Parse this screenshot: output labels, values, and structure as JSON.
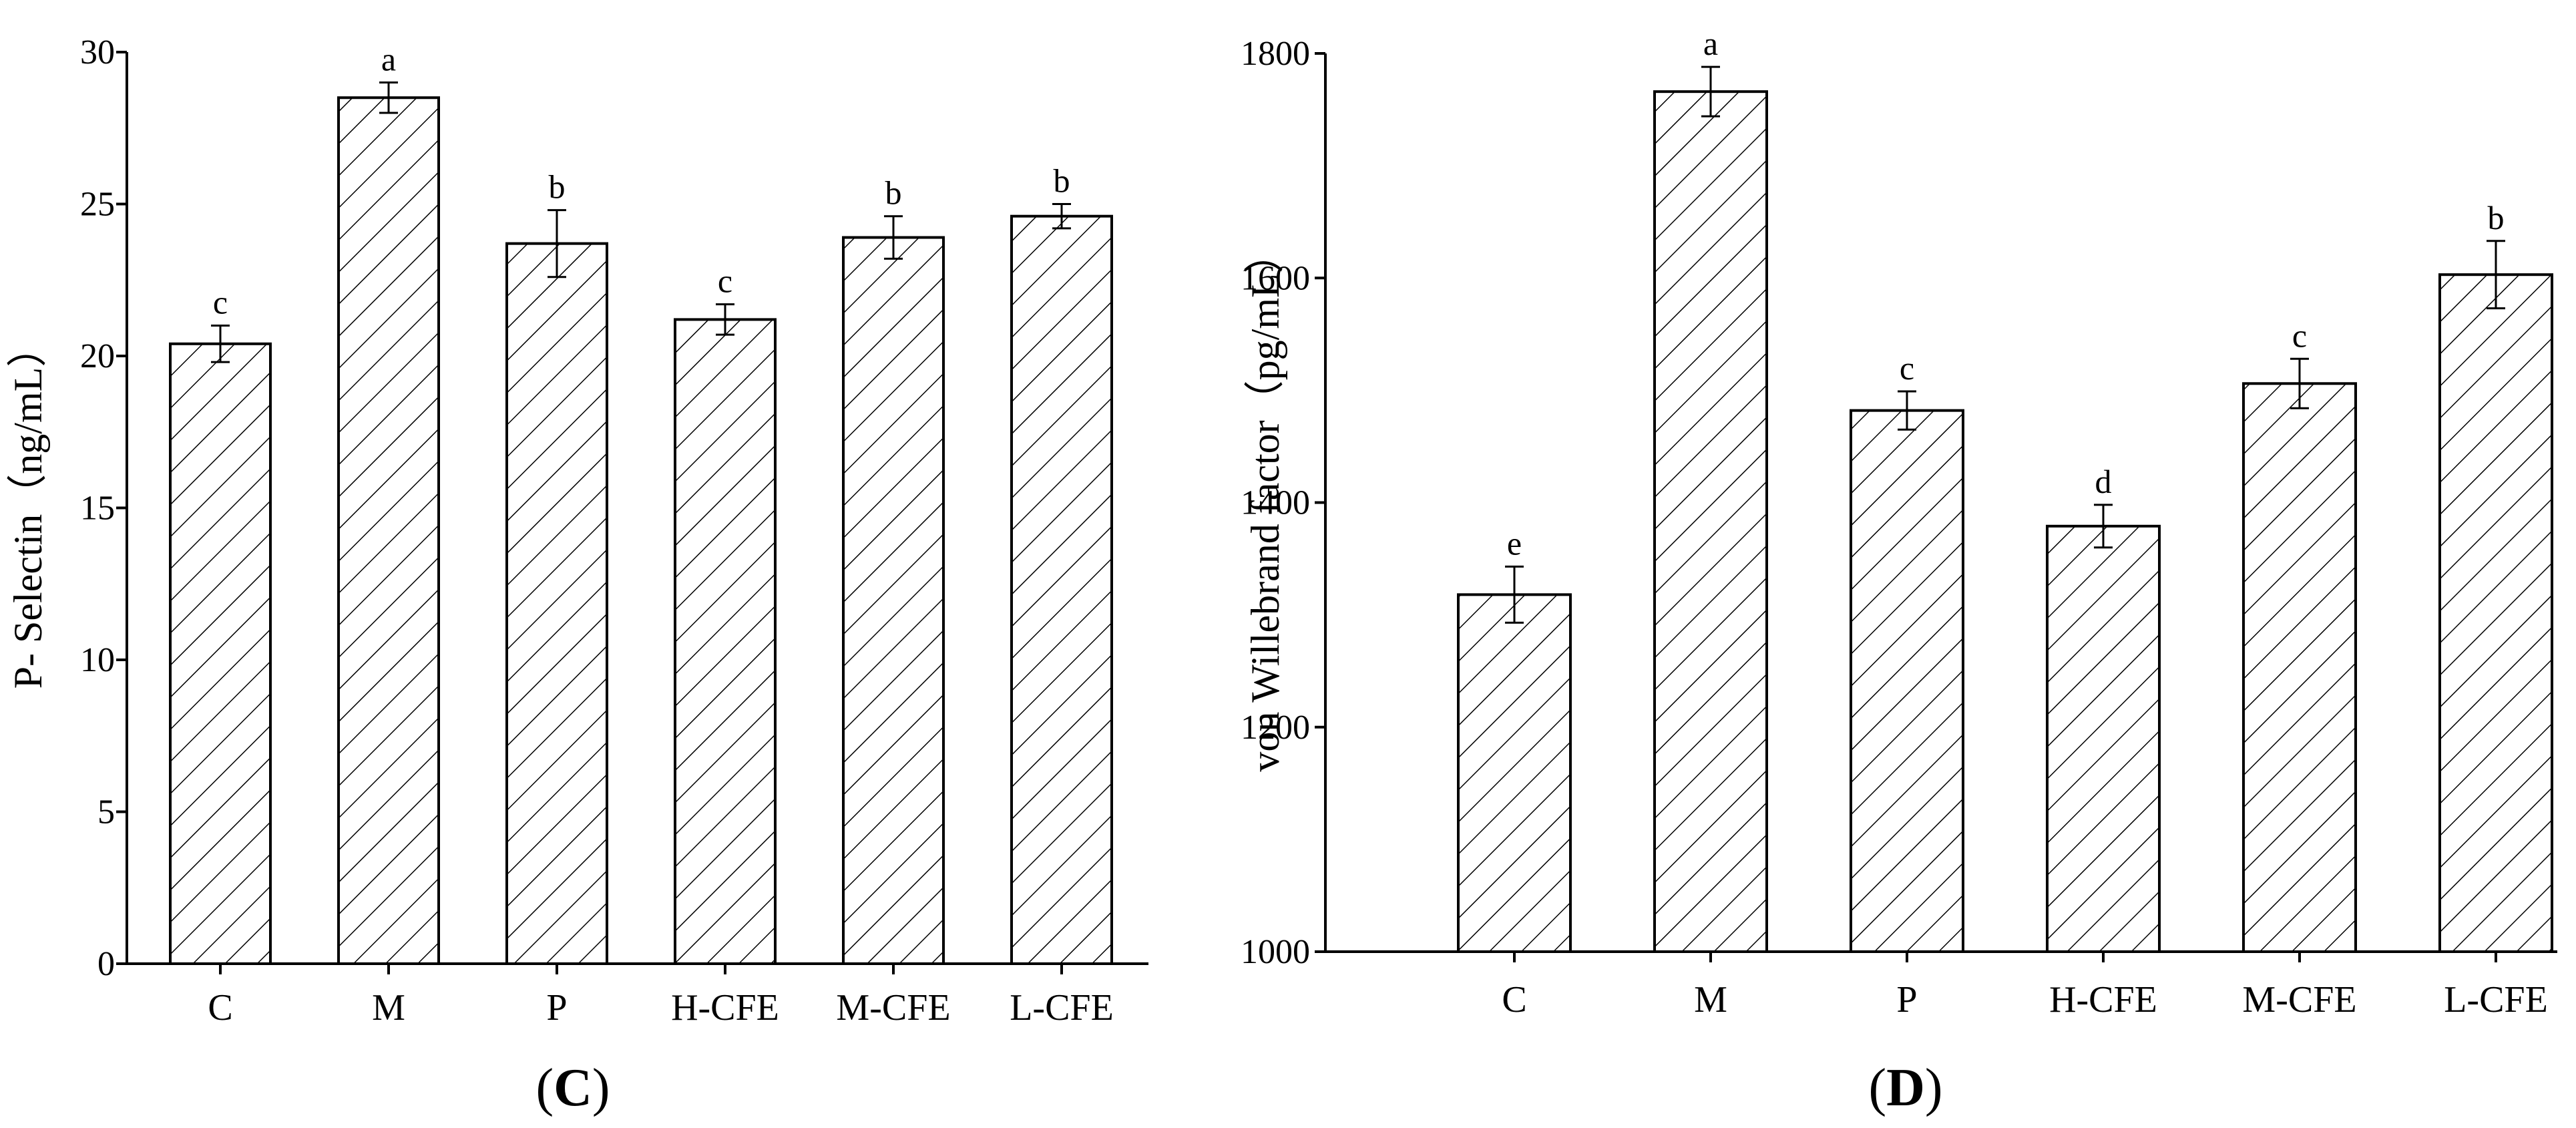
{
  "chart_data": [
    {
      "type": "bar",
      "panel": "(C)",
      "panel_letter": "C",
      "ylabel": "P- Selectin（ng/mL）",
      "categories": [
        "C",
        "M",
        "P",
        "H-CFE",
        "M-CFE",
        "L-CFE"
      ],
      "values": [
        20.4,
        28.5,
        23.7,
        21.2,
        23.9,
        24.6
      ],
      "errors": [
        0.6,
        0.5,
        1.1,
        0.5,
        0.7,
        0.4
      ],
      "significance": [
        "c",
        "a",
        "b",
        "c",
        "b",
        "b"
      ],
      "ylim": [
        0,
        30
      ],
      "yticks": [
        0,
        5,
        10,
        15,
        20,
        25,
        30
      ],
      "pattern": "diagonal hatch",
      "grid": false
    },
    {
      "type": "bar",
      "panel": "(D)",
      "panel_letter": "D",
      "ylabel": "von Willebrand factor（pg/mL）",
      "categories": [
        "C",
        "M",
        "P",
        "H-CFE",
        "M-CFE",
        "L-CFE"
      ],
      "values": [
        1318,
        1766,
        1482,
        1379,
        1506,
        1603
      ],
      "errors": [
        25,
        22,
        17,
        19,
        22,
        30
      ],
      "significance": [
        "e",
        "a",
        "c",
        "d",
        "c",
        "b"
      ],
      "ylim": [
        1000,
        1800
      ],
      "yticks": [
        1000,
        1200,
        1400,
        1600,
        1800
      ],
      "pattern": "diagonal hatch",
      "grid": false
    }
  ],
  "colors": {
    "bar_fill": "#ffffff",
    "bar_stroke": "#000000",
    "hatch": "#000000",
    "axis": "#000000"
  }
}
